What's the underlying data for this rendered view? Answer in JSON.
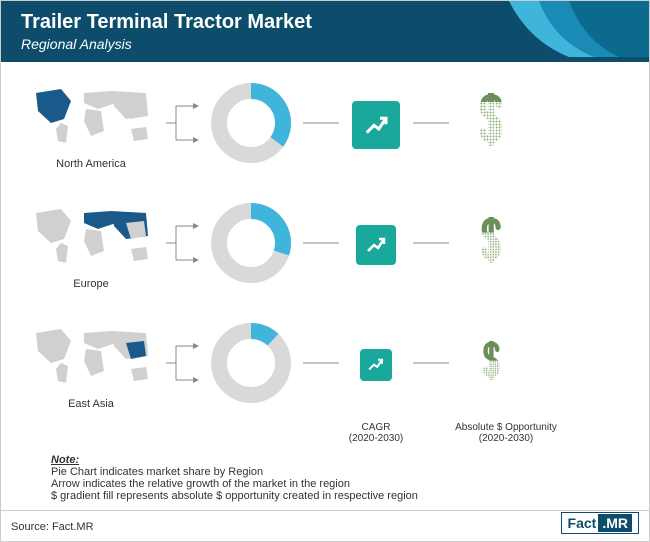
{
  "header": {
    "title": "Trailer Terminal Tractor Market",
    "subtitle": "Regional Analysis",
    "bg_color": "#0d4d6b",
    "curve_colors": [
      "#3fb5db",
      "#1a8bb5",
      "#0d6a8f"
    ]
  },
  "regions": [
    {
      "name": "North America",
      "donut_pct": 35,
      "donut_fill": "#3fb5db",
      "donut_bg": "#d9d9d9",
      "cagr_size": 48,
      "cagr_color": "#1aa89c",
      "dollar_size": 60,
      "dollar_fill_pct": 85,
      "map_highlight": "north_america"
    },
    {
      "name": "Europe",
      "donut_pct": 30,
      "donut_fill": "#3fb5db",
      "donut_bg": "#d9d9d9",
      "cagr_size": 40,
      "cagr_color": "#1aa89c",
      "dollar_size": 52,
      "dollar_fill_pct": 70,
      "map_highlight": "europe"
    },
    {
      "name": "East Asia",
      "donut_pct": 12,
      "donut_fill": "#3fb5db",
      "donut_bg": "#d9d9d9",
      "cagr_size": 32,
      "cagr_color": "#1aa89c",
      "dollar_size": 44,
      "dollar_fill_pct": 55,
      "map_highlight": "east_asia"
    }
  ],
  "column_labels": {
    "cagr": "CAGR",
    "cagr_sub": "(2020-2030)",
    "dollar": "Absolute $ Opportunity",
    "dollar_sub": "(2020-2030)"
  },
  "note": {
    "title": "Note:",
    "lines": [
      "Pie Chart indicates market share by Region",
      "Arrow indicates the relative growth of the market in the region",
      "$ gradient fill represents absolute $ opportunity created in respective region"
    ]
  },
  "source": "Source: Fact.MR",
  "logo": {
    "part1": "Fact",
    "part2": ".MR"
  },
  "colors": {
    "map_base": "#d0d0d0",
    "map_highlight": "#1a5a8a",
    "connector": "#888888",
    "dollar_stroke": "#6b8e5a",
    "dollar_pattern": "#8fb07a"
  }
}
